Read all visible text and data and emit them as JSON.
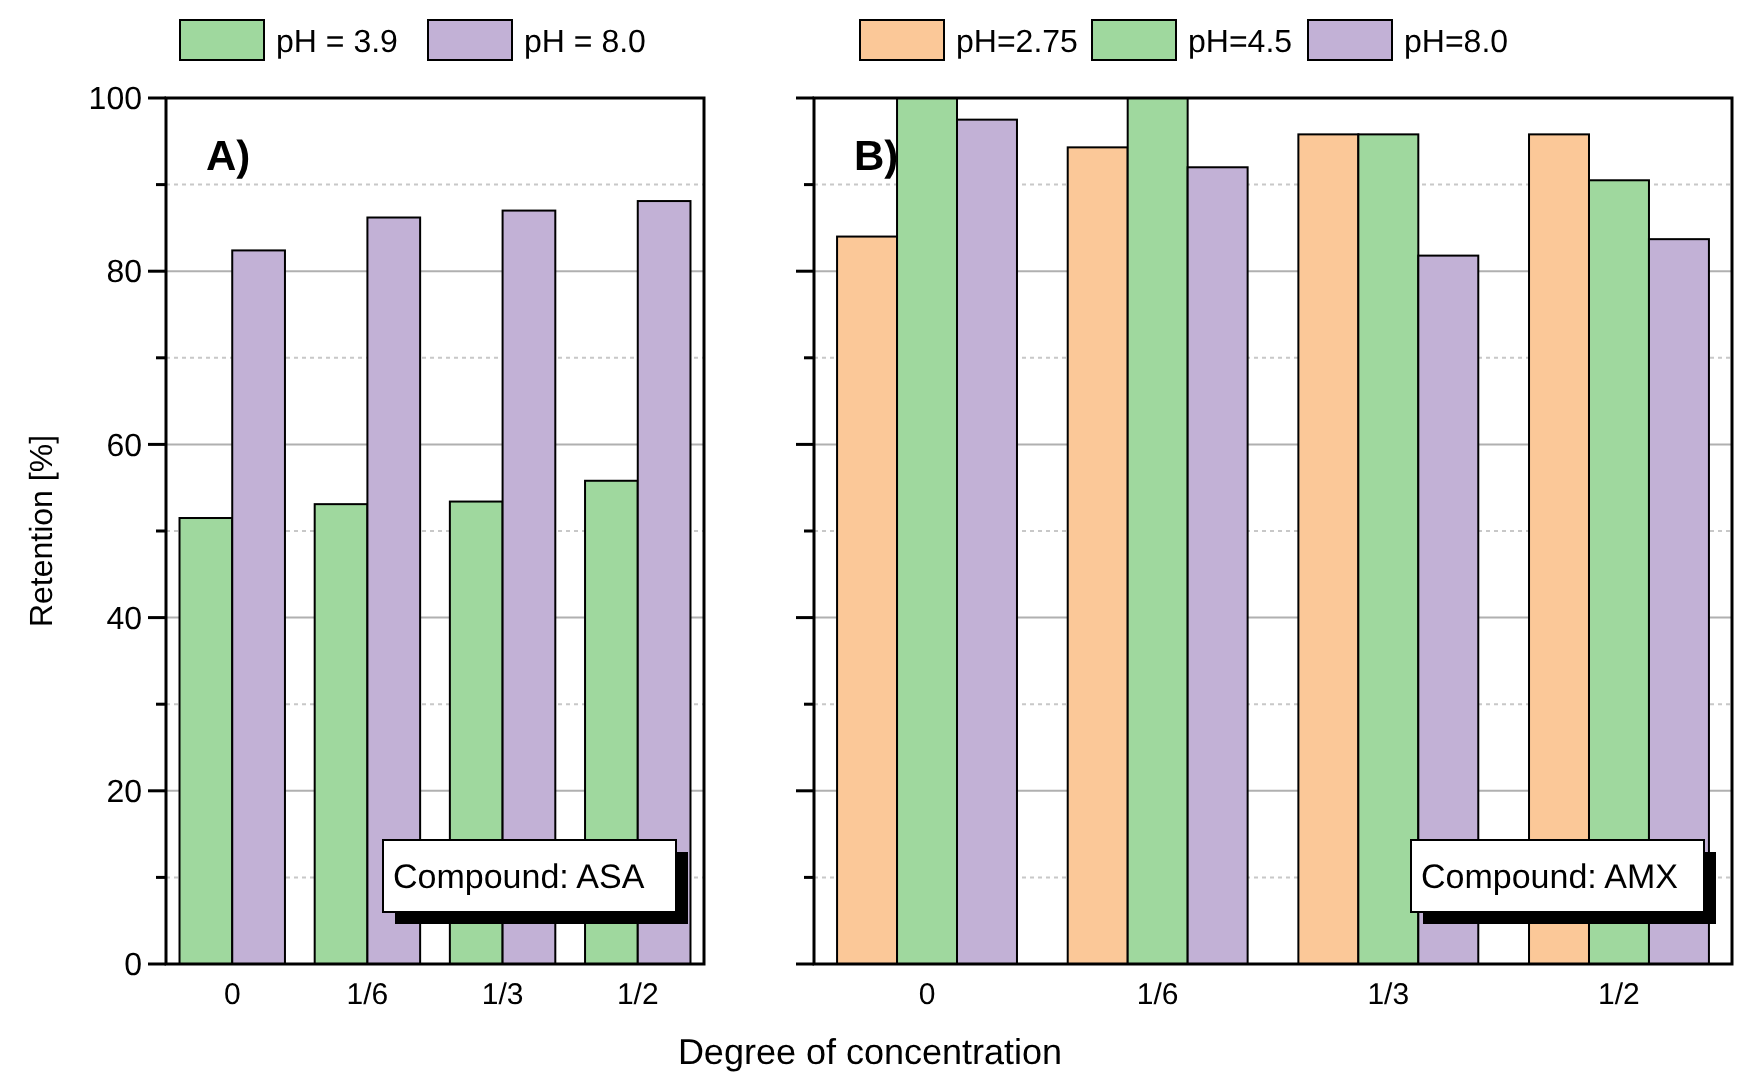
{
  "chart_data": [
    {
      "type": "bar",
      "categories": [
        "0",
        "1/6",
        "1/3",
        "1/2"
      ],
      "ylabel": "Retention [%]",
      "series": [
        {
          "name": "pH = 3.9",
          "color": "#9fd89e",
          "values": [
            51.5,
            53.1,
            53.4,
            55.8
          ]
        },
        {
          "name": "pH = 8.0",
          "color": "#c2b1d6",
          "values": [
            82.4,
            86.2,
            87.0,
            88.1
          ]
        }
      ],
      "ylim": [
        0,
        100
      ],
      "yticks": [
        0,
        {
          "value": 10,
          "label": null
        },
        20,
        {
          "value": 30,
          "label": null
        },
        40,
        {
          "value": 50,
          "label": null
        },
        60,
        {
          "value": 70,
          "label": null
        },
        80,
        {
          "value": 90,
          "label": null
        },
        100
      ],
      "grid": true,
      "legend": "top",
      "annotations": [
        "A)",
        "Compound: ASA"
      ]
    },
    {
      "type": "bar",
      "categories": [
        "0",
        "1/6",
        "1/3",
        "1/2"
      ],
      "xlabel": "Degree of concentration",
      "series": [
        {
          "name": "pH=2.75",
          "color": "#fbc898",
          "values": [
            84.0,
            94.3,
            95.8,
            95.8
          ]
        },
        {
          "name": "pH=4.5",
          "color": "#9fd89e",
          "values": [
            100,
            100,
            95.8,
            90.5
          ]
        },
        {
          "name": "pH=8.0",
          "color": "#c2b1d6",
          "values": [
            97.5,
            92.0,
            81.8,
            83.7
          ]
        }
      ],
      "ylim": [
        0,
        100
      ],
      "yticks": [
        0,
        {
          "value": 10,
          "label": null
        },
        20,
        {
          "value": 30,
          "label": null
        },
        40,
        {
          "value": 50,
          "label": null
        },
        60,
        {
          "value": 70,
          "label": null
        },
        80,
        {
          "value": 90,
          "label": null
        },
        100
      ],
      "tick_labels": "x",
      "grid": true,
      "legend": "top",
      "annotations": [
        "B)",
        "Compound: AMX"
      ]
    }
  ]
}
